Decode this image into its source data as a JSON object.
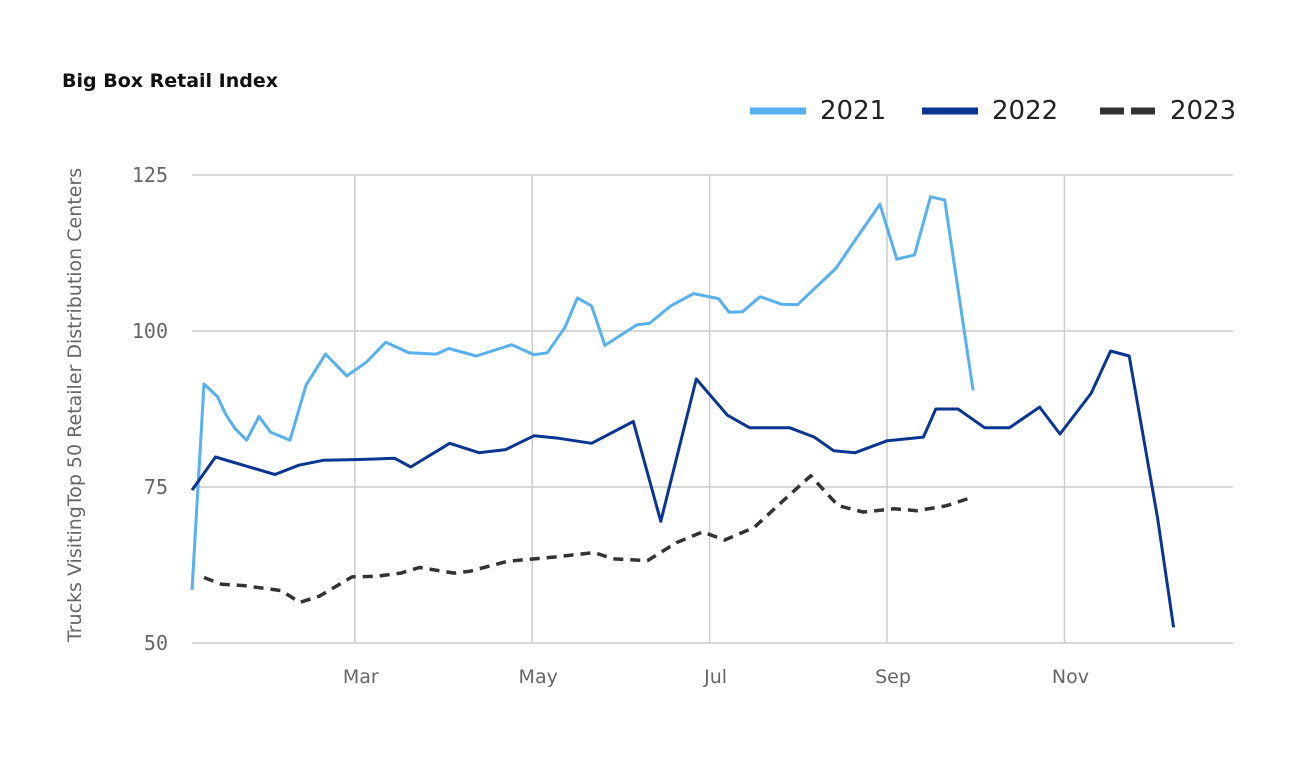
{
  "chart_data": {
    "type": "line",
    "title": "Big Box Retail Index",
    "ylabel": "Trucks VisitingTop 50 Retailer Distribution Centers",
    "xlabel": "",
    "ylim": [
      50,
      125
    ],
    "yticks": [
      50,
      75,
      100,
      125
    ],
    "xticks": [
      {
        "label": "Mar",
        "value": 2
      },
      {
        "label": "May",
        "value": 4
      },
      {
        "label": "Jul",
        "value": 6
      },
      {
        "label": "Sep",
        "value": 8
      },
      {
        "label": "Nov",
        "value": 10
      }
    ],
    "xlim": [
      0.165,
      11.9
    ],
    "grid": true,
    "legend_position": "top-right",
    "series": [
      {
        "name": "2021",
        "color": "#57b1ef",
        "style": "solid",
        "points": [
          [
            0.165,
            58.5
          ],
          [
            0.3,
            91.5
          ],
          [
            0.45,
            89.5
          ],
          [
            0.55,
            86.5
          ],
          [
            0.66,
            84.2
          ],
          [
            0.78,
            82.5
          ],
          [
            0.92,
            86.3
          ],
          [
            1.05,
            83.8
          ],
          [
            1.27,
            82.5
          ],
          [
            1.45,
            91.3
          ],
          [
            1.67,
            96.3
          ],
          [
            1.91,
            92.8
          ],
          [
            2.13,
            95.0
          ],
          [
            2.35,
            98.2
          ],
          [
            2.61,
            96.5
          ],
          [
            2.92,
            96.3
          ],
          [
            3.06,
            97.2
          ],
          [
            3.37,
            96.0
          ],
          [
            3.77,
            97.8
          ],
          [
            4.02,
            96.2
          ],
          [
            4.17,
            96.5
          ],
          [
            4.37,
            100.6
          ],
          [
            4.51,
            105.3
          ],
          [
            4.67,
            104.0
          ],
          [
            4.82,
            97.7
          ],
          [
            5.18,
            101.0
          ],
          [
            5.32,
            101.2
          ],
          [
            5.56,
            104.0
          ],
          [
            5.82,
            106.0
          ],
          [
            6.1,
            105.2
          ],
          [
            6.22,
            103.0
          ],
          [
            6.37,
            103.1
          ],
          [
            6.57,
            105.5
          ],
          [
            6.81,
            104.3
          ],
          [
            6.99,
            104.2
          ],
          [
            7.42,
            110.0
          ],
          [
            7.92,
            120.3
          ],
          [
            8.11,
            111.5
          ],
          [
            8.31,
            112.2
          ],
          [
            8.49,
            121.5
          ],
          [
            8.65,
            121.0
          ],
          [
            8.97,
            90.5
          ]
        ]
      },
      {
        "name": "2022",
        "color": "#0a3691",
        "style": "solid",
        "points": [
          [
            0.165,
            74.5
          ],
          [
            0.43,
            79.8
          ],
          [
            1.1,
            77.0
          ],
          [
            1.37,
            78.5
          ],
          [
            1.65,
            79.3
          ],
          [
            2.05,
            79.4
          ],
          [
            2.45,
            79.6
          ],
          [
            2.63,
            78.2
          ],
          [
            3.07,
            82.0
          ],
          [
            3.4,
            80.5
          ],
          [
            3.7,
            81.0
          ],
          [
            4.02,
            83.2
          ],
          [
            4.3,
            82.8
          ],
          [
            4.67,
            82.0
          ],
          [
            5.14,
            85.5
          ],
          [
            5.45,
            69.5
          ],
          [
            5.85,
            92.3
          ],
          [
            6.2,
            86.5
          ],
          [
            6.45,
            84.5
          ],
          [
            6.9,
            84.5
          ],
          [
            7.18,
            83.0
          ],
          [
            7.4,
            80.8
          ],
          [
            7.64,
            80.5
          ],
          [
            8.0,
            82.4
          ],
          [
            8.41,
            83.0
          ],
          [
            8.55,
            87.5
          ],
          [
            8.8,
            87.5
          ],
          [
            9.1,
            84.5
          ],
          [
            9.38,
            84.5
          ],
          [
            9.72,
            87.8
          ],
          [
            9.95,
            83.5
          ],
          [
            10.3,
            90.0
          ],
          [
            10.52,
            96.8
          ],
          [
            10.73,
            96.0
          ],
          [
            11.05,
            70.0
          ],
          [
            11.23,
            52.5
          ]
        ]
      },
      {
        "name": "2023",
        "color": "#333333",
        "style": "dashed",
        "points": [
          [
            0.3,
            60.5
          ],
          [
            0.5,
            59.4
          ],
          [
            0.75,
            59.2
          ],
          [
            1.17,
            58.4
          ],
          [
            1.38,
            56.5
          ],
          [
            1.6,
            57.5
          ],
          [
            1.97,
            60.6
          ],
          [
            2.25,
            60.7
          ],
          [
            2.52,
            61.2
          ],
          [
            2.73,
            62.1
          ],
          [
            3.12,
            61.2
          ],
          [
            3.3,
            61.5
          ],
          [
            3.72,
            63.1
          ],
          [
            4.27,
            63.8
          ],
          [
            4.7,
            64.5
          ],
          [
            4.91,
            63.5
          ],
          [
            5.3,
            63.2
          ],
          [
            5.63,
            66.1
          ],
          [
            5.92,
            67.8
          ],
          [
            6.17,
            66.5
          ],
          [
            6.5,
            68.5
          ],
          [
            6.83,
            72.8
          ],
          [
            7.14,
            76.8
          ],
          [
            7.45,
            72.0
          ],
          [
            7.73,
            71.0
          ],
          [
            8.08,
            71.5
          ],
          [
            8.34,
            71.2
          ],
          [
            8.67,
            72.0
          ],
          [
            8.95,
            73.3
          ]
        ]
      }
    ]
  }
}
